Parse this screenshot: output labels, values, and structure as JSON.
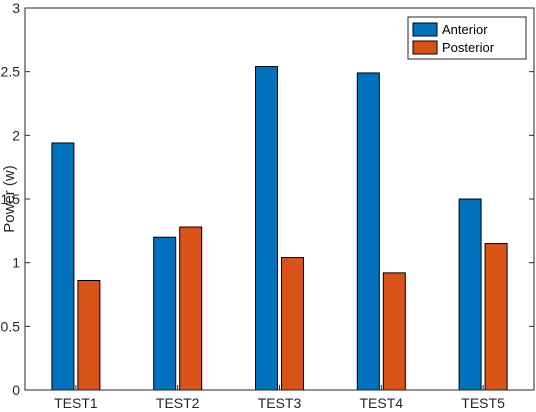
{
  "chart_data": {
    "type": "bar",
    "title": "",
    "xlabel": "",
    "ylabel": "Power (w)",
    "ylim": [
      0,
      3
    ],
    "yticks": [
      "0",
      "0.5",
      "1",
      "1.5",
      "2",
      "2.5",
      "3"
    ],
    "categories": [
      "TEST1",
      "TEST2",
      "TEST3",
      "TEST4",
      "TEST5"
    ],
    "series": [
      {
        "name": "Anterior",
        "color": "#0072BD",
        "values": [
          1.94,
          1.2,
          2.54,
          2.49,
          1.5
        ]
      },
      {
        "name": "Posterior",
        "color": "#D95319",
        "values": [
          0.86,
          1.28,
          1.04,
          0.92,
          1.15
        ]
      }
    ],
    "grid": false,
    "legend": "top-right"
  }
}
